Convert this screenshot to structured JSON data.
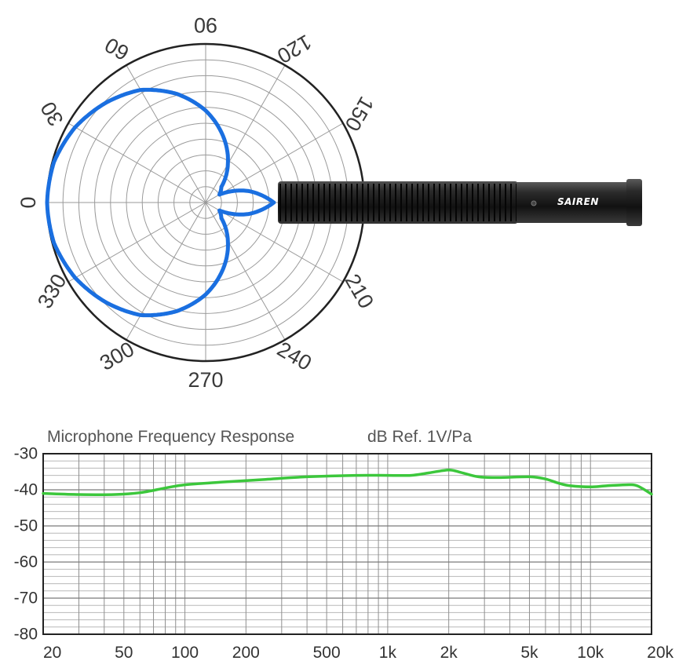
{
  "colors": {
    "polar_curve": "#1a6fe0",
    "freq_curve": "#3cc73c",
    "grid": "#9a9a9a",
    "frame": "#222222",
    "mic_body": "#1b1b1b"
  },
  "product": {
    "brand": "SAIREN"
  },
  "chart_data": [
    {
      "type": "polar",
      "pattern": "supercardioid",
      "angle_labels": [
        "0",
        "30",
        "60",
        "90",
        "120",
        "150",
        "210",
        "240",
        "270",
        "300",
        "330"
      ],
      "angles_deg": [
        0,
        15,
        30,
        45,
        60,
        75,
        90,
        105,
        120,
        135,
        150,
        165,
        180
      ],
      "radius": [
        1.0,
        0.99,
        0.95,
        0.89,
        0.82,
        0.71,
        0.58,
        0.43,
        0.28,
        0.14,
        0.1,
        0.28,
        0.43
      ],
      "rings": 10,
      "spokes_every_deg": 30,
      "grid": true
    },
    {
      "type": "line",
      "title": "Microphone Frequency Response",
      "ylabel": "dB Ref. 1V/Pa",
      "xscale": "log",
      "xlim": [
        20,
        20000
      ],
      "ylim": [
        -80,
        -30
      ],
      "x_ticks": [
        20,
        50,
        100,
        200,
        500,
        1000,
        2000,
        5000,
        10000,
        20000
      ],
      "x_tick_labels": [
        "20",
        "50",
        "100",
        "200",
        "500",
        "1k",
        "2k",
        "5k",
        "10k",
        "20k"
      ],
      "y_ticks": [
        -30,
        -40,
        -50,
        -60,
        -70,
        -80
      ],
      "y_tick_labels": [
        "-30",
        "-40",
        "-50",
        "-60",
        "-70",
        "-80"
      ],
      "grid": true,
      "series": [
        {
          "x": [
            20,
            30,
            45,
            60,
            80,
            100,
            150,
            250,
            400,
            700,
            1000,
            1300,
            1600,
            2000,
            2300,
            2800,
            3500,
            5000,
            6000,
            7000,
            8000,
            10000,
            12000,
            15000,
            17000,
            20000
          ],
          "y": [
            -41.0,
            -41.3,
            -41.3,
            -40.8,
            -39.5,
            -38.6,
            -37.9,
            -37.1,
            -36.4,
            -36.0,
            -36.0,
            -36.0,
            -35.3,
            -34.5,
            -35.2,
            -36.4,
            -36.6,
            -36.4,
            -37.0,
            -38.2,
            -38.9,
            -39.2,
            -38.9,
            -38.6,
            -38.9,
            -41.2
          ]
        }
      ]
    }
  ]
}
